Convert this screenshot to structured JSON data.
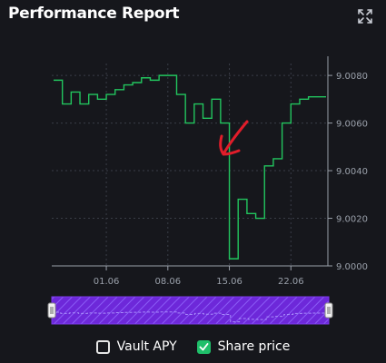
{
  "header": {
    "title": "Performance Report",
    "expand_icon": "expand-icon"
  },
  "colors": {
    "line": "#22c55e",
    "axis": "#9aa0aa",
    "grid": "#3a3d47",
    "navigator_fill": "#6d28d9",
    "navigator_hatch": "#8b5cf6",
    "arrow": "#e11d2a"
  },
  "legend": [
    {
      "label": "Vault APY",
      "checked": false
    },
    {
      "label": "Share price",
      "checked": true
    }
  ],
  "chart_data": {
    "type": "line",
    "series": [
      {
        "name": "Share price",
        "x": [
          "05-26",
          "05-27",
          "05-28",
          "05-29",
          "05-30",
          "05-31",
          "06-01",
          "06-02",
          "06-03",
          "06-04",
          "06-05",
          "06-06",
          "06-07",
          "06-08",
          "06-09",
          "06-10",
          "06-11",
          "06-12",
          "06-13",
          "06-14",
          "06-15",
          "06-16",
          "06-17",
          "06-18",
          "06-19",
          "06-20",
          "06-21",
          "06-22",
          "06-23",
          "06-24",
          "06-25",
          "06-26"
        ],
        "values": [
          9.0078,
          9.0068,
          9.0073,
          9.0068,
          9.0072,
          9.007,
          9.0072,
          9.0074,
          9.0076,
          9.0077,
          9.0079,
          9.0078,
          9.008,
          9.008,
          9.0072,
          9.006,
          9.0068,
          9.0062,
          9.007,
          9.006,
          9.0003,
          9.0028,
          9.0022,
          9.002,
          9.0042,
          9.0045,
          9.006,
          9.0068,
          9.007,
          9.0071,
          9.0071,
          9.0071
        ]
      }
    ],
    "xticks": [
      "01.06",
      "08.06",
      "15.06",
      "22.06"
    ],
    "yticks": [
      "9.0000",
      "9.0020",
      "9.0040",
      "9.0060",
      "9.0080"
    ],
    "ylim": [
      9.0,
      9.0085
    ],
    "grid": true
  }
}
